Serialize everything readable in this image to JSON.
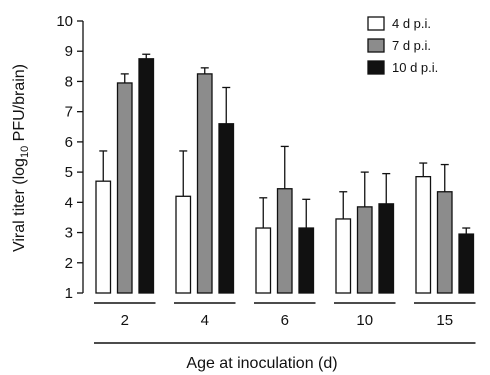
{
  "chart_data": {
    "type": "bar",
    "title": "",
    "xlabel": "Age at inoculation (d)",
    "ylabel_main": "Viral titer (log",
    "ylabel_sub": "10",
    "ylabel_unit": " PFU/brain)",
    "ylim": [
      1,
      10
    ],
    "yticks": [
      "1",
      "2",
      "3",
      "4",
      "5",
      "6",
      "7",
      "8",
      "9",
      "10"
    ],
    "categories": [
      "2",
      "4",
      "6",
      "10",
      "15"
    ],
    "legend_position": "top-right",
    "grid": false,
    "series": [
      {
        "name": "4 d p.i.",
        "color": "#ffffff",
        "values": [
          4.7,
          4.2,
          3.15,
          3.45,
          4.85
        ],
        "errors": [
          1.0,
          1.5,
          1.0,
          0.9,
          0.45
        ]
      },
      {
        "name": "7 d p.i.",
        "color": "#8c8c8c",
        "values": [
          7.95,
          8.25,
          4.45,
          3.85,
          4.35
        ],
        "errors": [
          0.3,
          0.2,
          1.4,
          1.15,
          0.9
        ]
      },
      {
        "name": "10 d p.i.",
        "color": "#111111",
        "values": [
          8.75,
          6.6,
          3.15,
          3.95,
          2.95
        ],
        "errors": [
          0.15,
          1.2,
          0.95,
          1.0,
          0.2
        ]
      }
    ]
  }
}
